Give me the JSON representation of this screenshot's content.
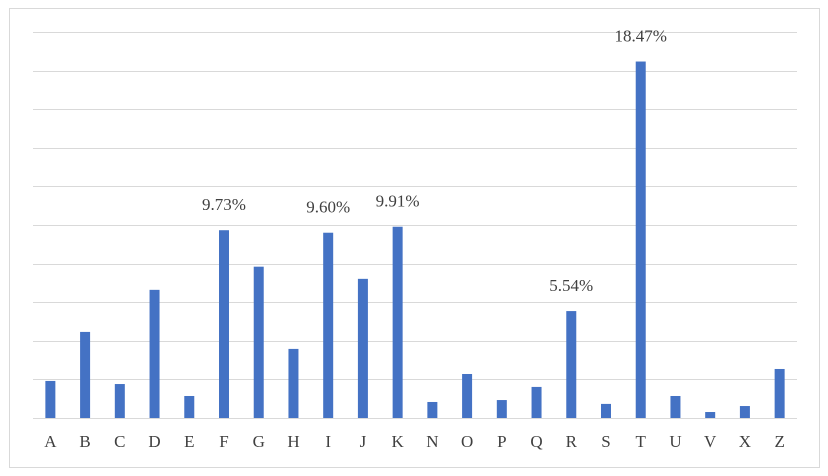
{
  "chart_data": {
    "type": "bar",
    "categories": [
      "A",
      "B",
      "C",
      "D",
      "E",
      "F",
      "G",
      "H",
      "I",
      "J",
      "K",
      "N",
      "O",
      "P",
      "Q",
      "R",
      "S",
      "T",
      "U",
      "V",
      "X",
      "Z"
    ],
    "values": [
      1.92,
      4.46,
      1.76,
      6.64,
      1.14,
      9.73,
      7.84,
      3.58,
      9.6,
      7.21,
      9.91,
      0.83,
      2.28,
      0.93,
      1.61,
      5.54,
      0.73,
      18.47,
      1.14,
      0.31,
      0.62,
      2.54
    ],
    "value_labels": [
      null,
      null,
      null,
      null,
      null,
      "9.73%",
      null,
      null,
      "9.60%",
      null,
      "9.91%",
      null,
      null,
      null,
      null,
      "5.54%",
      null,
      "18.47%",
      null,
      null,
      null,
      null
    ],
    "color": "#4472c4",
    "ylim": [
      0,
      20
    ],
    "yticks": [
      0,
      2,
      4,
      6,
      8,
      10,
      12,
      14,
      16,
      18,
      20
    ],
    "grid": true
  }
}
